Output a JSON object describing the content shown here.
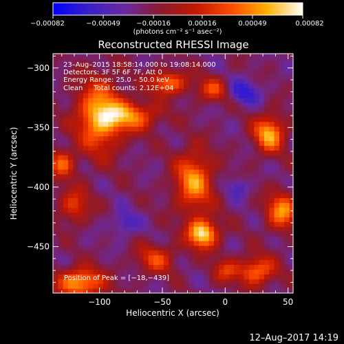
{
  "chart_data": {
    "type": "heatmap",
    "title": "Reconstructed RHESSI Image",
    "xlabel": "Heliocentric X (arcsec)",
    "ylabel": "Heliocentric Y (arcsec)",
    "xlim": [
      -137,
      54
    ],
    "ylim": [
      -489,
      -288
    ],
    "x_ticks": [
      {
        "value": -100,
        "label": "−100"
      },
      {
        "value": -50,
        "label": "−50"
      },
      {
        "value": 0,
        "label": "0"
      },
      {
        "value": 50,
        "label": "50"
      }
    ],
    "y_ticks": [
      {
        "value": -300,
        "label": "−300"
      },
      {
        "value": -350,
        "label": "−350"
      },
      {
        "value": -400,
        "label": "−400"
      },
      {
        "value": -450,
        "label": "−450"
      }
    ],
    "colorbar": {
      "range": [
        -0.00082,
        0.00082
      ],
      "ticks": [
        {
          "value": -0.00082,
          "label": "−0.00082"
        },
        {
          "value": -0.00049,
          "label": "−0.00049"
        },
        {
          "value": -0.00016,
          "label": "−0.00016"
        },
        {
          "value": 0.00016,
          "label": "0.00016"
        },
        {
          "value": 0.00049,
          "label": "0.00049"
        },
        {
          "value": 0.00082,
          "label": "0.00082"
        }
      ],
      "colors": [
        "#0000ff",
        "#3a1fc8",
        "#6a2aa0",
        "#8a1a30",
        "#c21800",
        "#ff4a00",
        "#ffb000",
        "#ffffff"
      ]
    },
    "annotations": {
      "time_range": "23–Aug–2015 18:58:14.000 to 19:08:14.000",
      "detectors": "Detectors: 3F 5F 6F 7F, Att 0",
      "energy": "Energy Range: 25.0 – 50.0 keV",
      "method": "Clean     Total counts: 2.12E+04",
      "peak": "Position of Peak = [−18,−439]"
    },
    "peak": [
      -18,
      -439
    ],
    "bright_regions": [
      {
        "x": -100,
        "y": -340,
        "sx": 18,
        "sy": 30,
        "a": 1.0
      },
      {
        "x": -75,
        "y": -340,
        "sx": 22,
        "sy": 12,
        "a": 0.8
      },
      {
        "x": -45,
        "y": -312,
        "sx": 15,
        "sy": 10,
        "a": 0.8
      },
      {
        "x": -10,
        "y": -318,
        "sx": 12,
        "sy": 10,
        "a": 0.6
      },
      {
        "x": -25,
        "y": -395,
        "sx": 15,
        "sy": 25,
        "a": 0.9
      },
      {
        "x": -18,
        "y": -439,
        "sx": 12,
        "sy": 12,
        "a": 1.2
      },
      {
        "x": -115,
        "y": -480,
        "sx": 18,
        "sy": 12,
        "a": 1.0
      },
      {
        "x": -130,
        "y": -380,
        "sx": 10,
        "sy": 12,
        "a": 0.7
      },
      {
        "x": 35,
        "y": -355,
        "sx": 12,
        "sy": 15,
        "a": 1.0
      },
      {
        "x": 45,
        "y": -420,
        "sx": 12,
        "sy": 15,
        "a": 0.9
      },
      {
        "x": 25,
        "y": -470,
        "sx": 15,
        "sy": 12,
        "a": 0.8
      },
      {
        "x": -55,
        "y": -460,
        "sx": 15,
        "sy": 12,
        "a": 0.6
      },
      {
        "x": -120,
        "y": -415,
        "sx": 12,
        "sy": 14,
        "a": 0.6
      },
      {
        "x": 0,
        "y": -470,
        "sx": 10,
        "sy": 10,
        "a": 0.5
      }
    ],
    "dark_regions": [
      {
        "x": 15,
        "y": -320,
        "sx": 12,
        "sy": 10,
        "a": 1.0
      },
      {
        "x": -80,
        "y": -430,
        "sx": 10,
        "sy": 10,
        "a": 0.8
      },
      {
        "x": 10,
        "y": -400,
        "sx": 8,
        "sy": 8,
        "a": 0.7
      }
    ]
  },
  "footer": {
    "timestamp": "12–Aug–2017 14:19"
  },
  "colorbar_unit": "(photons cm⁻² s⁻¹ asec⁻²)"
}
